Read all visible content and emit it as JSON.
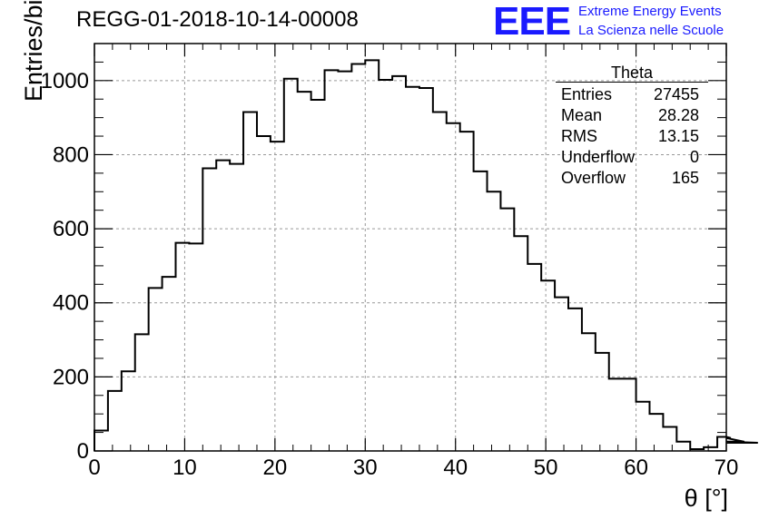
{
  "title": "REGG-01-2018-10-14-00008",
  "logo": {
    "mark": "EEE",
    "line1": "Extreme Energy Events",
    "line2": "La Scienza nelle Scuole",
    "color": "#1a1aff"
  },
  "stats_box": {
    "title": "Theta",
    "rows": [
      {
        "label": "Entries",
        "value": "27455"
      },
      {
        "label": "Mean",
        "value": "28.28"
      },
      {
        "label": "RMS",
        "value": "13.15"
      },
      {
        "label": "Underflow",
        "value": "0"
      },
      {
        "label": "Overflow",
        "value": "165"
      }
    ]
  },
  "chart_data": {
    "type": "bar",
    "style": "step-histogram",
    "title": "REGG-01-2018-10-14-00008",
    "xlabel": "θ [°]",
    "ylabel": "Entries/bin",
    "xlim": [
      0,
      70
    ],
    "ylim": [
      0,
      1100
    ],
    "bin_width": 1.5,
    "xticks": [
      0,
      10,
      20,
      30,
      40,
      50,
      60,
      70
    ],
    "yticks": [
      0,
      200,
      400,
      600,
      800,
      1000
    ],
    "grid": true,
    "values": [
      55,
      162,
      215,
      315,
      440,
      470,
      562,
      560,
      763,
      785,
      775,
      915,
      850,
      835,
      1005,
      970,
      948,
      1028,
      1025,
      1045,
      1055,
      1002,
      1012,
      983,
      980,
      915,
      885,
      862,
      755,
      700,
      655,
      580,
      505,
      460,
      415,
      385,
      318,
      265,
      195,
      195,
      133,
      100,
      65,
      25,
      5,
      10,
      38,
      35,
      25,
      22
    ]
  }
}
